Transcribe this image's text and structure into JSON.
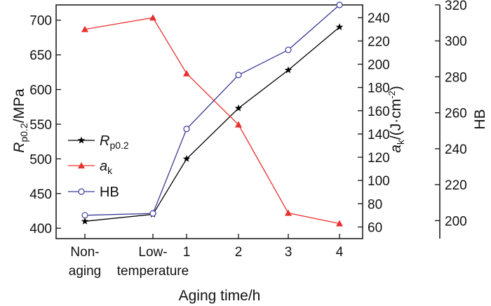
{
  "chart_data": {
    "type": "line",
    "categories": [
      [
        "Non-",
        "aging"
      ],
      [
        "Low-",
        "temperature"
      ],
      [
        "1"
      ],
      [
        "2"
      ],
      [
        "3"
      ],
      [
        "4"
      ]
    ],
    "xlabel": "Aging time/h",
    "axes": {
      "left": {
        "label_main": "R",
        "label_sub": "p0.2",
        "label_unit": "/MPa",
        "min": 385,
        "max": 722,
        "ticks": [
          400,
          450,
          500,
          550,
          600,
          650,
          700
        ]
      },
      "right1": {
        "label_main": "a",
        "label_sub": "k",
        "label_unit_a": "/(J·cm",
        "label_sup": "-2",
        "label_unit_b": ")",
        "min": 50,
        "max": 251,
        "ticks": [
          60,
          80,
          100,
          120,
          140,
          160,
          180,
          200,
          220,
          240
        ]
      },
      "right2": {
        "label": "HB",
        "min": 190,
        "max": 320,
        "ticks": [
          200,
          220,
          240,
          260,
          280,
          300,
          320
        ]
      }
    },
    "series": [
      {
        "key": "rp",
        "name_main": "R",
        "name_sub": "p0.2",
        "axis": "left",
        "color": "#000000",
        "marker": "star",
        "values": [
          410,
          420,
          500,
          573,
          628,
          690
        ]
      },
      {
        "key": "ak",
        "name_main": "a",
        "name_sub": "k",
        "axis": "right1",
        "color": "#e8312f",
        "marker": "triangle",
        "values": [
          230,
          240,
          192,
          148,
          72,
          63
        ]
      },
      {
        "key": "hb",
        "name_main": "HB",
        "name_sub": "",
        "axis": "right2",
        "color": "#3a3a99",
        "marker": "circle",
        "values": [
          203,
          204,
          251,
          281,
          295,
          320
        ]
      }
    ]
  }
}
